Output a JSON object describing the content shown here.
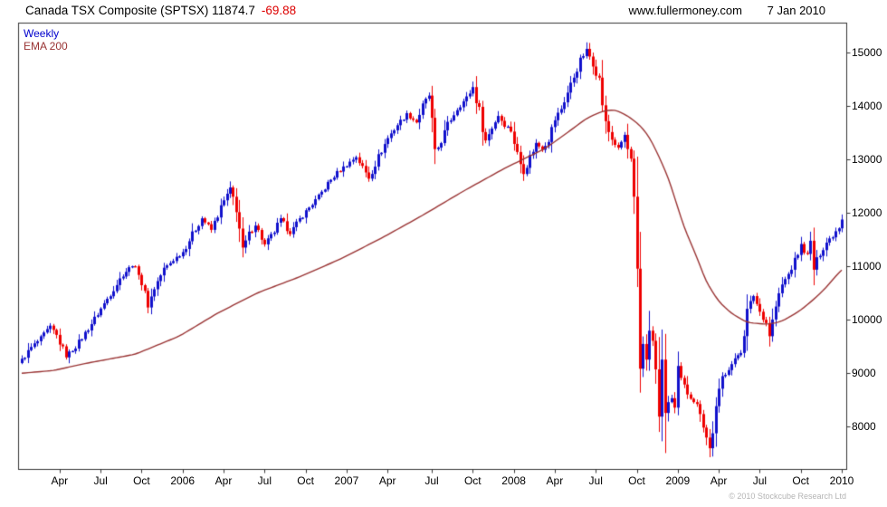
{
  "header": {
    "title": "Canada TSX Composite (SPTSX) 11874.7",
    "change": "-69.88",
    "website": "www.fullermoney.com",
    "date": "7 Jan 2010"
  },
  "legend": {
    "timeframe": "Weekly",
    "overlay": "EMA 200"
  },
  "footer": {
    "copyright": "© 2010 Stockcube Research Ltd"
  },
  "chart_data": {
    "type": "candlestick",
    "title": "Canada TSX Composite (SPTSX)",
    "timeframe": "Weekly",
    "last_close": 11874.7,
    "change": -69.88,
    "overlay": "EMA 200",
    "grid": false,
    "legend_position": "top-left",
    "ylim": [
      7200,
      15550
    ],
    "yticks": [
      8000,
      9000,
      10000,
      11000,
      12000,
      13000,
      14000,
      15000
    ],
    "weeks": 261,
    "up_color": "#1111cc",
    "down_color": "#ee0000",
    "ema_color": "#993333",
    "frame_color": "#333333",
    "xticks": [
      {
        "label": "Apr",
        "week": 12
      },
      {
        "label": "Jul",
        "week": 25
      },
      {
        "label": "Oct",
        "week": 38
      },
      {
        "label": "2006",
        "week": 51
      },
      {
        "label": "Apr",
        "week": 64
      },
      {
        "label": "Jul",
        "week": 77
      },
      {
        "label": "Oct",
        "week": 90
      },
      {
        "label": "2007",
        "week": 103
      },
      {
        "label": "Apr",
        "week": 116
      },
      {
        "label": "Jul",
        "week": 130
      },
      {
        "label": "Oct",
        "week": 143
      },
      {
        "label": "2008",
        "week": 156
      },
      {
        "label": "Apr",
        "week": 169
      },
      {
        "label": "Jul",
        "week": 182
      },
      {
        "label": "Oct",
        "week": 195
      },
      {
        "label": "2009",
        "week": 208
      },
      {
        "label": "Apr",
        "week": 221
      },
      {
        "label": "Jul",
        "week": 234
      },
      {
        "label": "Oct",
        "week": 247
      },
      {
        "label": "2010",
        "week": 260
      }
    ],
    "close_anchors": [
      [
        0,
        9250
      ],
      [
        3,
        9480
      ],
      [
        6,
        9650
      ],
      [
        9,
        9870
      ],
      [
        11,
        9700
      ],
      [
        14,
        9320
      ],
      [
        17,
        9500
      ],
      [
        20,
        9750
      ],
      [
        23,
        10020
      ],
      [
        26,
        10300
      ],
      [
        29,
        10580
      ],
      [
        32,
        10850
      ],
      [
        35,
        11020
      ],
      [
        37,
        10900
      ],
      [
        40,
        10250
      ],
      [
        42,
        10600
      ],
      [
        45,
        10950
      ],
      [
        48,
        11120
      ],
      [
        51,
        11270
      ],
      [
        54,
        11600
      ],
      [
        57,
        11900
      ],
      [
        60,
        11680
      ],
      [
        63,
        12100
      ],
      [
        66,
        12450
      ],
      [
        68,
        12100
      ],
      [
        70,
        11300
      ],
      [
        72,
        11600
      ],
      [
        74,
        11780
      ],
      [
        77,
        11400
      ],
      [
        80,
        11650
      ],
      [
        82,
        11880
      ],
      [
        85,
        11620
      ],
      [
        88,
        11880
      ],
      [
        91,
        12100
      ],
      [
        94,
        12300
      ],
      [
        97,
        12550
      ],
      [
        100,
        12750
      ],
      [
        103,
        12900
      ],
      [
        106,
        13050
      ],
      [
        108,
        12850
      ],
      [
        110,
        12650
      ],
      [
        113,
        13050
      ],
      [
        116,
        13400
      ],
      [
        119,
        13650
      ],
      [
        122,
        13850
      ],
      [
        125,
        13700
      ],
      [
        127,
        14000
      ],
      [
        129,
        14200
      ],
      [
        131,
        13100
      ],
      [
        133,
        13350
      ],
      [
        135,
        13650
      ],
      [
        138,
        13950
      ],
      [
        141,
        14150
      ],
      [
        143,
        14350
      ],
      [
        145,
        13900
      ],
      [
        147,
        13350
      ],
      [
        149,
        13600
      ],
      [
        151,
        13820
      ],
      [
        153,
        13650
      ],
      [
        155,
        13550
      ],
      [
        157,
        13100
      ],
      [
        159,
        12750
      ],
      [
        161,
        13050
      ],
      [
        163,
        13300
      ],
      [
        165,
        13200
      ],
      [
        167,
        13380
      ],
      [
        169,
        13750
      ],
      [
        171,
        13950
      ],
      [
        173,
        14250
      ],
      [
        175,
        14550
      ],
      [
        177,
        14850
      ],
      [
        179,
        15050
      ],
      [
        181,
        14800
      ],
      [
        183,
        14480
      ],
      [
        185,
        13650
      ],
      [
        187,
        13380
      ],
      [
        189,
        13200
      ],
      [
        191,
        13450
      ],
      [
        193,
        12900
      ],
      [
        194,
        12130
      ],
      [
        195,
        10800
      ],
      [
        196,
        9065
      ],
      [
        197,
        9560
      ],
      [
        198,
        9290
      ],
      [
        199,
        9760
      ],
      [
        200,
        9600
      ],
      [
        201,
        9030
      ],
      [
        202,
        8160
      ],
      [
        203,
        9270
      ],
      [
        204,
        8120
      ],
      [
        205,
        8490
      ],
      [
        206,
        8530
      ],
      [
        207,
        8310
      ],
      [
        208,
        9030
      ],
      [
        209,
        8870
      ],
      [
        211,
        8630
      ],
      [
        213,
        8490
      ],
      [
        215,
        8300
      ],
      [
        217,
        7800
      ],
      [
        218,
        7590
      ],
      [
        220,
        8300
      ],
      [
        222,
        8920
      ],
      [
        224,
        9100
      ],
      [
        226,
        9240
      ],
      [
        228,
        9450
      ],
      [
        230,
        10150
      ],
      [
        232,
        10450
      ],
      [
        234,
        10150
      ],
      [
        236,
        9950
      ],
      [
        237,
        9700
      ],
      [
        239,
        10250
      ],
      [
        241,
        10650
      ],
      [
        243,
        10850
      ],
      [
        245,
        11100
      ],
      [
        247,
        11400
      ],
      [
        249,
        11200
      ],
      [
        250,
        11450
      ],
      [
        251,
        10950
      ],
      [
        253,
        11250
      ],
      [
        255,
        11450
      ],
      [
        257,
        11580
      ],
      [
        259,
        11750
      ],
      [
        260,
        11875
      ]
    ],
    "ema_anchors": [
      [
        0,
        9000
      ],
      [
        10,
        9050
      ],
      [
        20,
        9180
      ],
      [
        36,
        9355
      ],
      [
        50,
        9695
      ],
      [
        62,
        10120
      ],
      [
        75,
        10510
      ],
      [
        88,
        10800
      ],
      [
        101,
        11135
      ],
      [
        114,
        11525
      ],
      [
        127,
        11950
      ],
      [
        140,
        12405
      ],
      [
        153,
        12830
      ],
      [
        166,
        13205
      ],
      [
        173,
        13500
      ],
      [
        179,
        13765
      ],
      [
        184,
        13900
      ],
      [
        188,
        13930
      ],
      [
        192,
        13820
      ],
      [
        196,
        13640
      ],
      [
        199,
        13420
      ],
      [
        202,
        13060
      ],
      [
        205,
        12660
      ],
      [
        210,
        11730
      ],
      [
        214,
        11180
      ],
      [
        217,
        10710
      ],
      [
        221,
        10340
      ],
      [
        225,
        10120
      ],
      [
        230,
        9950
      ],
      [
        236,
        9915
      ],
      [
        240,
        9950
      ],
      [
        243,
        10035
      ],
      [
        247,
        10180
      ],
      [
        251,
        10375
      ],
      [
        255,
        10600
      ],
      [
        259,
        10880
      ],
      [
        260,
        10930
      ]
    ]
  }
}
